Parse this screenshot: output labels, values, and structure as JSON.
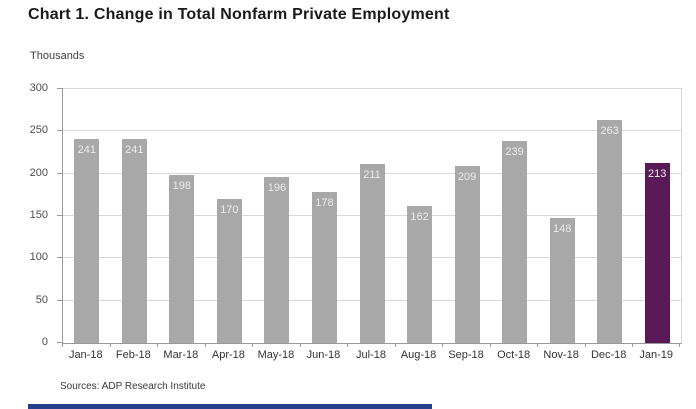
{
  "title": "Chart 1. Change in Total Nonfarm Private Employment",
  "units_label": "Thousands",
  "source": "Sources: ADP Research Institute",
  "chart_data": {
    "type": "bar",
    "title": "Chart 1. Change in Total Nonfarm Private Employment",
    "xlabel": "",
    "ylabel": "Thousands",
    "categories": [
      "Jan-18",
      "Feb-18",
      "Mar-18",
      "Apr-18",
      "May-18",
      "Jun-18",
      "Jul-18",
      "Aug-18",
      "Sep-18",
      "Oct-18",
      "Nov-18",
      "Dec-18",
      "Jan-19"
    ],
    "values": [
      241,
      241,
      198,
      170,
      196,
      178,
      211,
      162,
      209,
      239,
      148,
      263,
      213
    ],
    "ylim": [
      0,
      300
    ],
    "yticks": [
      0,
      50,
      100,
      150,
      200,
      250,
      300
    ],
    "grid": true,
    "legend": "none",
    "bar_color": "#a8a8a8",
    "highlight_color": "#5a1a58",
    "highlight_index": 12,
    "value_label_color": "#ececec"
  },
  "accent_bar_color": "#263f8d"
}
